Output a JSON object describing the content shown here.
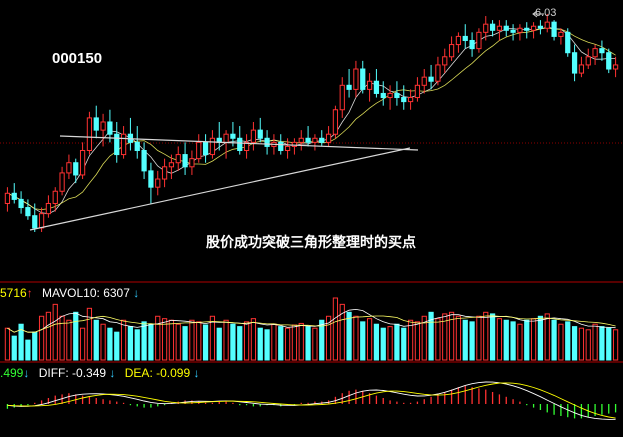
{
  "stock_code": "000150",
  "annotation": "股价成功突破三角形整理时的买点",
  "high_marker": "6.03",
  "volume_panel": {
    "vol_value": "5716",
    "vol_arrow": "↑",
    "mavol_label": "MAVOL10:",
    "mavol_value": "6307",
    "mavol_arrow": "↓"
  },
  "macd_panel": {
    "macd_value": ".499",
    "macd_arrow": "↓",
    "diff_label": "DIFF:",
    "diff_value": "-0.349",
    "diff_arrow": "↓",
    "dea_label": "DEA:",
    "dea_value": "-0.099",
    "dea_arrow": "↓"
  },
  "colors": {
    "up": "#ff3232",
    "down": "#54ffff",
    "ma_line": "#ffffff",
    "ma_line2": "#ffff66",
    "trendline": "#d8d8d8",
    "grid": "#8b0000",
    "vol_text": "#ffff00",
    "diff_text": "#ffffff",
    "dea_text": "#ffff00",
    "macd_text": "#33ff33"
  },
  "chart_data": {
    "type": "candlestick",
    "high_value": 6.03,
    "ohlc": [
      [
        5.1,
        5.18,
        5.06,
        5.15
      ],
      [
        5.15,
        5.2,
        5.1,
        5.12
      ],
      [
        5.12,
        5.16,
        5.05,
        5.08
      ],
      [
        5.08,
        5.12,
        5.02,
        5.04
      ],
      [
        5.04,
        5.1,
        4.96,
        4.98
      ],
      [
        4.98,
        5.08,
        4.96,
        5.05
      ],
      [
        5.05,
        5.14,
        5.03,
        5.1
      ],
      [
        5.1,
        5.18,
        5.06,
        5.16
      ],
      [
        5.16,
        5.28,
        5.14,
        5.25
      ],
      [
        5.25,
        5.34,
        5.22,
        5.3
      ],
      [
        5.3,
        5.32,
        5.2,
        5.24
      ],
      [
        5.24,
        5.4,
        5.22,
        5.36
      ],
      [
        5.36,
        5.55,
        5.34,
        5.52
      ],
      [
        5.52,
        5.58,
        5.42,
        5.46
      ],
      [
        5.46,
        5.54,
        5.38,
        5.5
      ],
      [
        5.5,
        5.56,
        5.4,
        5.44
      ],
      [
        5.44,
        5.5,
        5.3,
        5.34
      ],
      [
        5.34,
        5.48,
        5.32,
        5.44
      ],
      [
        5.44,
        5.52,
        5.36,
        5.4
      ],
      [
        5.4,
        5.48,
        5.32,
        5.36
      ],
      [
        5.36,
        5.4,
        5.22,
        5.26
      ],
      [
        5.26,
        5.3,
        5.1,
        5.18
      ],
      [
        5.18,
        5.26,
        5.14,
        5.22
      ],
      [
        5.22,
        5.32,
        5.18,
        5.28
      ],
      [
        5.28,
        5.34,
        5.22,
        5.3
      ],
      [
        5.3,
        5.38,
        5.26,
        5.34
      ],
      [
        5.34,
        5.4,
        5.24,
        5.28
      ],
      [
        5.28,
        5.36,
        5.24,
        5.32
      ],
      [
        5.32,
        5.44,
        5.3,
        5.4
      ],
      [
        5.4,
        5.44,
        5.3,
        5.34
      ],
      [
        5.34,
        5.46,
        5.32,
        5.42
      ],
      [
        5.42,
        5.5,
        5.36,
        5.4
      ],
      [
        5.4,
        5.46,
        5.32,
        5.44
      ],
      [
        5.44,
        5.5,
        5.38,
        5.42
      ],
      [
        5.42,
        5.48,
        5.34,
        5.36
      ],
      [
        5.36,
        5.44,
        5.32,
        5.4
      ],
      [
        5.4,
        5.5,
        5.36,
        5.46
      ],
      [
        5.46,
        5.52,
        5.4,
        5.42
      ],
      [
        5.42,
        5.46,
        5.34,
        5.38
      ],
      [
        5.38,
        5.44,
        5.34,
        5.4
      ],
      [
        5.4,
        5.44,
        5.34,
        5.36
      ],
      [
        5.36,
        5.42,
        5.32,
        5.38
      ],
      [
        5.38,
        5.42,
        5.34,
        5.4
      ],
      [
        5.4,
        5.46,
        5.36,
        5.42
      ],
      [
        5.42,
        5.48,
        5.38,
        5.4
      ],
      [
        5.4,
        5.44,
        5.36,
        5.42
      ],
      [
        5.42,
        5.46,
        5.38,
        5.4
      ],
      [
        5.4,
        5.48,
        5.38,
        5.44
      ],
      [
        5.44,
        5.58,
        5.42,
        5.56
      ],
      [
        5.56,
        5.72,
        5.52,
        5.68
      ],
      [
        5.68,
        5.76,
        5.62,
        5.66
      ],
      [
        5.66,
        5.8,
        5.62,
        5.76
      ],
      [
        5.76,
        5.8,
        5.64,
        5.66
      ],
      [
        5.66,
        5.74,
        5.6,
        5.7
      ],
      [
        5.7,
        5.76,
        5.62,
        5.64
      ],
      [
        5.64,
        5.7,
        5.58,
        5.62
      ],
      [
        5.62,
        5.68,
        5.56,
        5.64
      ],
      [
        5.64,
        5.7,
        5.58,
        5.62
      ],
      [
        5.62,
        5.68,
        5.56,
        5.6
      ],
      [
        5.6,
        5.66,
        5.56,
        5.62
      ],
      [
        5.62,
        5.72,
        5.6,
        5.68
      ],
      [
        5.68,
        5.76,
        5.64,
        5.72
      ],
      [
        5.72,
        5.78,
        5.66,
        5.7
      ],
      [
        5.7,
        5.82,
        5.68,
        5.78
      ],
      [
        5.78,
        5.86,
        5.74,
        5.82
      ],
      [
        5.82,
        5.92,
        5.8,
        5.88
      ],
      [
        5.88,
        5.94,
        5.84,
        5.92
      ],
      [
        5.92,
        5.98,
        5.86,
        5.9
      ],
      [
        5.9,
        5.94,
        5.82,
        5.86
      ],
      [
        5.86,
        5.96,
        5.84,
        5.94
      ],
      [
        5.94,
        6.02,
        5.9,
        5.98
      ],
      [
        5.98,
        6.0,
        5.92,
        5.95
      ],
      [
        5.95,
        6.0,
        5.9,
        5.97
      ],
      [
        5.97,
        6.0,
        5.92,
        5.95
      ],
      [
        5.95,
        5.98,
        5.9,
        5.94
      ],
      [
        5.94,
        5.98,
        5.9,
        5.96
      ],
      [
        5.96,
        5.99,
        5.91,
        5.95
      ],
      [
        5.95,
        5.99,
        5.91,
        5.97
      ],
      [
        5.97,
        6.0,
        5.93,
        5.96
      ],
      [
        5.96,
        6.03,
        5.94,
        5.99
      ],
      [
        5.99,
        6.0,
        5.9,
        5.92
      ],
      [
        5.92,
        5.96,
        5.88,
        5.94
      ],
      [
        5.94,
        5.96,
        5.82,
        5.84
      ],
      [
        5.84,
        5.88,
        5.7,
        5.74
      ],
      [
        5.74,
        5.82,
        5.72,
        5.78
      ],
      [
        5.78,
        5.86,
        5.76,
        5.82
      ],
      [
        5.82,
        5.88,
        5.78,
        5.86
      ],
      [
        5.86,
        5.9,
        5.8,
        5.84
      ],
      [
        5.84,
        5.86,
        5.74,
        5.76
      ],
      [
        5.76,
        5.82,
        5.72,
        5.78
      ]
    ],
    "volume": [
      40,
      30,
      45,
      25,
      35,
      55,
      60,
      70,
      55,
      50,
      60,
      40,
      65,
      50,
      45,
      40,
      35,
      50,
      42,
      38,
      48,
      45,
      55,
      52,
      50,
      45,
      42,
      50,
      48,
      44,
      55,
      40,
      50,
      45,
      42,
      48,
      52,
      40,
      38,
      45,
      42,
      40,
      44,
      46,
      42,
      40,
      50,
      55,
      78,
      70,
      60,
      55,
      48,
      52,
      45,
      40,
      42,
      45,
      40,
      50,
      48,
      55,
      60,
      52,
      58,
      60,
      55,
      50,
      48,
      55,
      60,
      58,
      52,
      50,
      48,
      45,
      50,
      52,
      55,
      58,
      50,
      45,
      48,
      42,
      40,
      38,
      45,
      42,
      40,
      38
    ],
    "macd_hist": [
      -4,
      -3,
      -2,
      -1,
      1,
      3,
      5,
      7,
      8,
      9,
      8,
      7,
      6,
      5,
      4,
      3,
      2,
      1,
      -1,
      -2,
      -3,
      -3,
      -2,
      -1,
      1,
      2,
      3,
      3,
      2,
      1,
      1,
      2,
      2,
      1,
      -1,
      -1,
      -2,
      -2,
      -1,
      -1,
      -2,
      -1,
      -1,
      1,
      1,
      2,
      2,
      3,
      6,
      9,
      11,
      12,
      11,
      9,
      7,
      5,
      3,
      2,
      1,
      1,
      2,
      4,
      6,
      8,
      10,
      12,
      14,
      15,
      14,
      13,
      12,
      10,
      8,
      6,
      4,
      2,
      -1,
      -3,
      -5,
      -7,
      -9,
      -10,
      -11,
      -12,
      -12,
      -11,
      -10,
      -9,
      -8,
      -7
    ]
  }
}
